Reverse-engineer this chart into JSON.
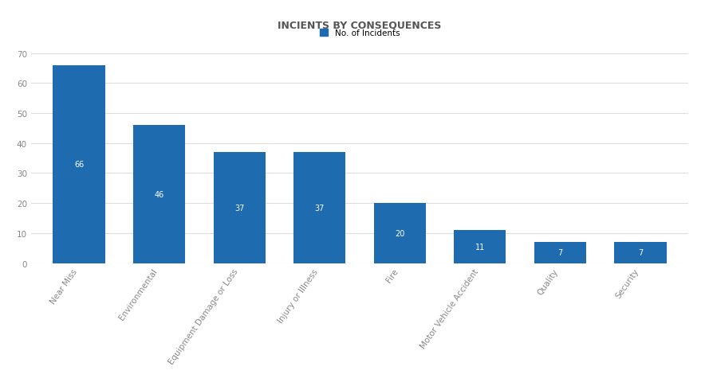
{
  "title": "INCIENTS BY CONSEQUENCES",
  "legend_label": "No. of Incidents",
  "categories": [
    "Near Miss",
    "Environmental",
    "Equipment Damage or Loss",
    "Injury or Illness",
    "Fire",
    "Motor Vehicle Accident",
    "Quality",
    "Security"
  ],
  "values": [
    66,
    46,
    37,
    37,
    20,
    11,
    7,
    7
  ],
  "bar_color": "#1E6BB0",
  "legend_color": "#1E6BB0",
  "label_color": "#ffffff",
  "yticks": [
    0,
    10,
    20,
    30,
    40,
    50,
    60,
    70
  ],
  "ylim": [
    0,
    72
  ],
  "background_color": "#ffffff",
  "grid_color": "#dddddd",
  "title_fontsize": 9,
  "legend_fontsize": 7.5,
  "tick_fontsize": 7.5,
  "bar_label_fontsize": 7
}
